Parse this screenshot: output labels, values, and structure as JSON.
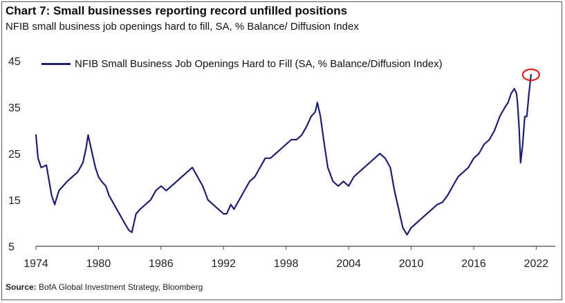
{
  "header": {
    "title": "Chart 7: Small businesses reporting record unfilled positions",
    "subtitle": "NFIB small business job openings hard to fill, SA, % Balance/ Diffusion Index"
  },
  "footer": {
    "source_label": "Source:",
    "source_text": "BofA Global Investment Strategy, Bloomberg"
  },
  "colors": {
    "series": "#1d1f6e",
    "highlight_circle": "#e02020",
    "axis": "#444444"
  },
  "chart_data": {
    "type": "line",
    "title": "Chart 7: Small businesses reporting record unfilled positions",
    "subtitle": "NFIB small business job openings hard to fill, SA, % Balance/ Diffusion Index",
    "xlabel": "",
    "ylabel": "",
    "xlim": [
      1974,
      2023.3
    ],
    "ylim": [
      5,
      45
    ],
    "yticks": [
      5,
      15,
      25,
      35,
      45
    ],
    "xticks": [
      1974,
      1980,
      1986,
      1992,
      1998,
      2004,
      2010,
      2016,
      2022
    ],
    "grid": false,
    "legend_position": "top-left",
    "annotation": "red circle around the latest record high",
    "series": [
      {
        "name": "NFIB Small Business Job Openings Hard to Fill (SA, % Balance/Diffusion Index)",
        "x": [
          1974.0,
          1974.2,
          1974.5,
          1975.0,
          1975.5,
          1975.8,
          1976.2,
          1976.6,
          1977.0,
          1977.5,
          1978.0,
          1978.5,
          1978.8,
          1979.0,
          1979.3,
          1979.7,
          1980.0,
          1980.3,
          1980.7,
          1981.0,
          1981.5,
          1982.0,
          1982.5,
          1982.9,
          1983.2,
          1983.6,
          1984.0,
          1984.5,
          1985.0,
          1985.5,
          1986.0,
          1986.5,
          1987.0,
          1987.5,
          1988.0,
          1988.5,
          1989.0,
          1989.5,
          1990.0,
          1990.5,
          1991.0,
          1991.5,
          1992.0,
          1992.3,
          1992.7,
          1993.0,
          1993.5,
          1994.0,
          1994.5,
          1995.0,
          1995.5,
          1996.0,
          1996.5,
          1997.0,
          1997.5,
          1998.0,
          1998.5,
          1999.0,
          1999.5,
          2000.0,
          2000.4,
          2000.8,
          2001.0,
          2001.3,
          2001.6,
          2002.0,
          2002.5,
          2003.0,
          2003.5,
          2004.0,
          2004.5,
          2005.0,
          2005.5,
          2006.0,
          2006.5,
          2007.0,
          2007.5,
          2008.0,
          2008.4,
          2008.8,
          2009.2,
          2009.6,
          2010.0,
          2010.5,
          2011.0,
          2011.5,
          2012.0,
          2012.5,
          2013.0,
          2013.5,
          2014.0,
          2014.5,
          2015.0,
          2015.5,
          2016.0,
          2016.5,
          2017.0,
          2017.5,
          2018.0,
          2018.5,
          2019.0,
          2019.3,
          2019.6,
          2019.9,
          2020.1,
          2020.2,
          2020.35,
          2020.5,
          2020.7,
          2020.9,
          2021.1,
          2021.3,
          2021.5
        ],
        "values": [
          29,
          24,
          22,
          22.5,
          16,
          14,
          17,
          18,
          19,
          20,
          21,
          23,
          26,
          29,
          26,
          22,
          20,
          19,
          18,
          16,
          14,
          12,
          10,
          8.5,
          8,
          12,
          13,
          14,
          15,
          17,
          18,
          17,
          18,
          19,
          20,
          21,
          22,
          20,
          18,
          15,
          14,
          13,
          12,
          12,
          14,
          13,
          15,
          17,
          19,
          20,
          22,
          24,
          24,
          25,
          26,
          27,
          28,
          28,
          29,
          31,
          33,
          34,
          36,
          33,
          28,
          22,
          19,
          18,
          19,
          18,
          20,
          21,
          22,
          23,
          24,
          25,
          24,
          22,
          17,
          13,
          9,
          7.5,
          9,
          10,
          11,
          12,
          13,
          14,
          14.5,
          16,
          18,
          20,
          21,
          22,
          24,
          25,
          27,
          28,
          30,
          33,
          35,
          36,
          38,
          39,
          38,
          36,
          31,
          23,
          27,
          33,
          33,
          38,
          42
        ]
      }
    ]
  }
}
